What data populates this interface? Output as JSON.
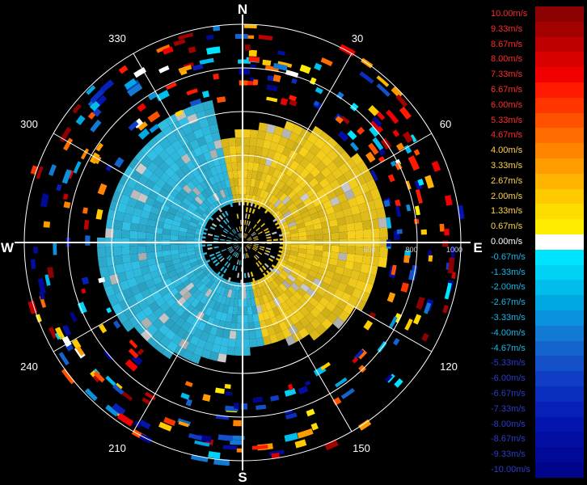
{
  "chart_data": {
    "type": "heatmap",
    "description_type": "polar radial velocity (PPI)",
    "compass": {
      "north": "N",
      "east": "E",
      "south": "S",
      "west": "W"
    },
    "azimuth_labels": [
      "30",
      "60",
      "120",
      "150",
      "210",
      "240",
      "300",
      "330"
    ],
    "range_labels": [
      "600",
      "800",
      "1000"
    ],
    "range_max": 1000,
    "grid": true,
    "legend": {
      "placement": "right",
      "entries": [
        {
          "label": "10.00m/s",
          "value": 10.0,
          "color": "#8b0000"
        },
        {
          "label": "9.33m/s",
          "value": 9.33,
          "color": "#a30000"
        },
        {
          "label": "8.67m/s",
          "value": 8.67,
          "color": "#bf0000"
        },
        {
          "label": "8.00m/s",
          "value": 8.0,
          "color": "#d90000"
        },
        {
          "label": "7.33m/s",
          "value": 7.33,
          "color": "#f00000"
        },
        {
          "label": "6.67m/s",
          "value": 6.67,
          "color": "#ff1a00"
        },
        {
          "label": "6.00m/s",
          "value": 6.0,
          "color": "#ff3600"
        },
        {
          "label": "5.33m/s",
          "value": 5.33,
          "color": "#ff5200"
        },
        {
          "label": "4.67m/s",
          "value": 4.67,
          "color": "#ff6c00"
        },
        {
          "label": "4.00m/s",
          "value": 4.0,
          "color": "#ff8500"
        },
        {
          "label": "3.33m/s",
          "value": 3.33,
          "color": "#ff9d00"
        },
        {
          "label": "2.67m/s",
          "value": 2.67,
          "color": "#ffb400"
        },
        {
          "label": "2.00m/s",
          "value": 2.0,
          "color": "#ffca00"
        },
        {
          "label": "1.33m/s",
          "value": 1.33,
          "color": "#ffdc00"
        },
        {
          "label": "0.67m/s",
          "value": 0.67,
          "color": "#ffec00"
        },
        {
          "label": "0.00m/s",
          "value": 0.0,
          "color": "#ffffff"
        },
        {
          "label": "-0.67m/s",
          "value": -0.67,
          "color": "#00e5ff"
        },
        {
          "label": "-1.33m/s",
          "value": -1.33,
          "color": "#00d2f5"
        },
        {
          "label": "-2.00m/s",
          "value": -2.0,
          "color": "#00bdeb"
        },
        {
          "label": "-2.67m/s",
          "value": -2.67,
          "color": "#00a8e3"
        },
        {
          "label": "-3.33m/s",
          "value": -3.33,
          "color": "#0a92dc"
        },
        {
          "label": "-4.00m/s",
          "value": -4.0,
          "color": "#127ad4"
        },
        {
          "label": "-4.67m/s",
          "value": -4.67,
          "color": "#1464ce"
        },
        {
          "label": "-5.33m/s",
          "value": -5.33,
          "color": "#1450c8"
        },
        {
          "label": "-6.00m/s",
          "value": -6.0,
          "color": "#0f3ec4"
        },
        {
          "label": "-6.67m/s",
          "value": -6.67,
          "color": "#0a2ec0"
        },
        {
          "label": "-7.33m/s",
          "value": -7.33,
          "color": "#0620b8"
        },
        {
          "label": "-8.00m/s",
          "value": -8.0,
          "color": "#0315ad"
        },
        {
          "label": "-8.67m/s",
          "value": -8.67,
          "color": "#020ea2"
        },
        {
          "label": "-9.33m/s",
          "value": -9.33,
          "color": "#010997"
        },
        {
          "label": "-10.00m/s",
          "value": -10.0,
          "color": "#01058c"
        }
      ]
    },
    "label_colors": {
      "positive": "#ff2a2a",
      "positive_low": "#ffd24a",
      "zero": "#ffffff",
      "negative": "#18b8e8",
      "negative_deep": "#2a3cc8"
    },
    "echo_colors": {
      "receding": "#e6c21c",
      "approaching": "#2fb3d6",
      "clutter": "#bdbdbd"
    }
  }
}
